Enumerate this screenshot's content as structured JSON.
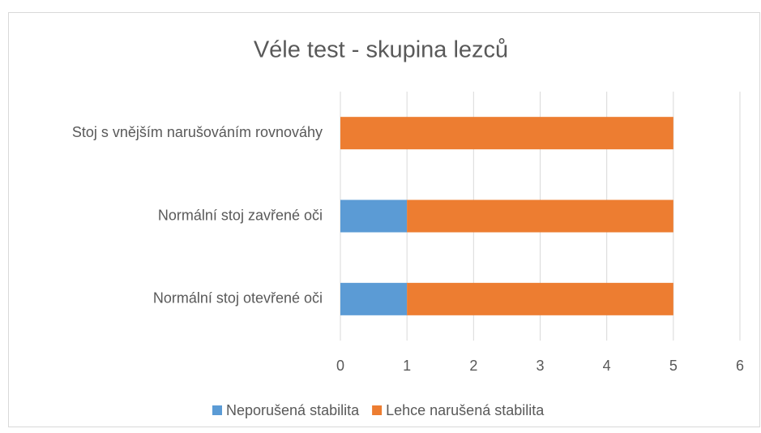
{
  "chart_data": {
    "type": "bar",
    "orientation": "horizontal",
    "stacked": true,
    "title": "Véle test - skupina lezců",
    "categories": [
      "Stoj s vnějším narušováním rovnováhy",
      "Normální stoj zavřené oči",
      "Normální stoj otevřené oči"
    ],
    "series": [
      {
        "name": "Neporušená stabilita",
        "color": "#5b9bd5",
        "values": [
          0,
          1,
          1
        ]
      },
      {
        "name": "Lehce narušená stabilita",
        "color": "#ed7d31",
        "values": [
          5,
          4,
          4
        ]
      }
    ],
    "xlim": [
      0,
      6
    ],
    "xticks": [
      0,
      1,
      2,
      3,
      4,
      5,
      6
    ],
    "grid": true,
    "legend": "bottom"
  }
}
